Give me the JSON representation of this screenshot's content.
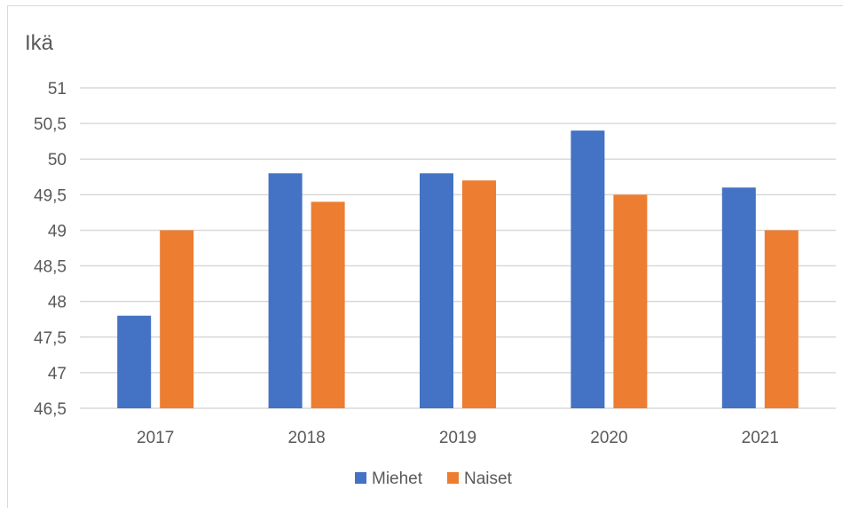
{
  "chart_data": {
    "type": "bar",
    "title": "",
    "xlabel": "",
    "ylabel": "Ikä",
    "categories": [
      "2017",
      "2018",
      "2019",
      "2020",
      "2021"
    ],
    "series": [
      {
        "name": "Miehet",
        "color": "#4472C4",
        "values": [
          47.8,
          49.8,
          49.8,
          50.4,
          49.6
        ]
      },
      {
        "name": "Naiset",
        "color": "#ED7D31",
        "values": [
          49.0,
          49.4,
          49.7,
          49.5,
          49.0
        ]
      }
    ],
    "ylim": [
      46.5,
      51
    ],
    "yticks": [
      "46,5",
      "47",
      "47,5",
      "48",
      "48,5",
      "49",
      "49,5",
      "50",
      "50,5",
      "51"
    ],
    "grid": true,
    "legend_position": "bottom",
    "gridline_color": "#d9d9d9"
  }
}
